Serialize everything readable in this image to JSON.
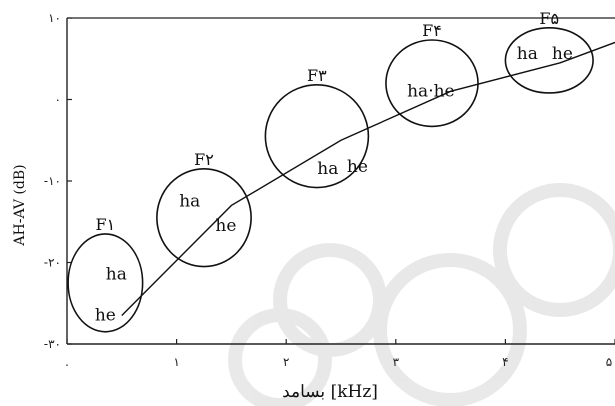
{
  "chart_data": {
    "type": "line",
    "xlabel": "بسامد [kHz]",
    "ylabel": "AH-AV (dB)",
    "xlim": [
      0,
      5
    ],
    "ylim": [
      -30,
      10
    ],
    "x_ticks": [
      {
        "value": 0,
        "label": "."
      },
      {
        "value": 1,
        "label": "۱"
      },
      {
        "value": 2,
        "label": "۲"
      },
      {
        "value": 3,
        "label": "۳"
      },
      {
        "value": 4,
        "label": "۴"
      },
      {
        "value": 5,
        "label": "۵"
      }
    ],
    "y_ticks": [
      {
        "value": 10,
        "label": "۱۰"
      },
      {
        "value": 0,
        "label": "۰"
      },
      {
        "value": -10,
        "label": "-۱۰"
      },
      {
        "value": -20,
        "label": "-۲۰"
      },
      {
        "value": -30,
        "label": "-۳۰"
      }
    ],
    "line": {
      "x": [
        0.5,
        1.5,
        2.5,
        3.5,
        4.5,
        5.0
      ],
      "y": [
        -26.5,
        -13.0,
        -5.0,
        1.0,
        4.5,
        7.0
      ]
    },
    "formants": [
      {
        "label": "F۱",
        "cx": 0.35,
        "cy": -22.5,
        "rx": 0.34,
        "ry": 6.0,
        "points": [
          {
            "text": "ha",
            "x": 0.45,
            "y": -21.5
          },
          {
            "text": "he",
            "x": 0.35,
            "y": -26.5
          }
        ]
      },
      {
        "label": "F۲",
        "cx": 1.25,
        "cy": -14.5,
        "rx": 0.43,
        "ry": 6.0,
        "points": [
          {
            "text": "ha",
            "x": 1.12,
            "y": -12.5
          },
          {
            "text": "he",
            "x": 1.45,
            "y": -15.5
          }
        ]
      },
      {
        "label": "F۳",
        "cx": 2.28,
        "cy": -4.5,
        "rx": 0.47,
        "ry": 6.3,
        "points": [
          {
            "text": "ha",
            "x": 2.38,
            "y": -8.5
          },
          {
            "text": "he",
            "x": 2.65,
            "y": -8.3
          }
        ]
      },
      {
        "label": "F۴",
        "cx": 3.33,
        "cy": 2.0,
        "rx": 0.42,
        "ry": 5.3,
        "points": [
          {
            "text": "ha·he",
            "x": 3.32,
            "y": 1.0
          }
        ]
      },
      {
        "label": "F۵",
        "cx": 4.4,
        "cy": 4.8,
        "rx": 0.4,
        "ry": 4.0,
        "points": [
          {
            "text": "ha",
            "x": 4.2,
            "y": 5.6
          },
          {
            "text": "he",
            "x": 4.52,
            "y": 5.6
          }
        ]
      }
    ]
  }
}
